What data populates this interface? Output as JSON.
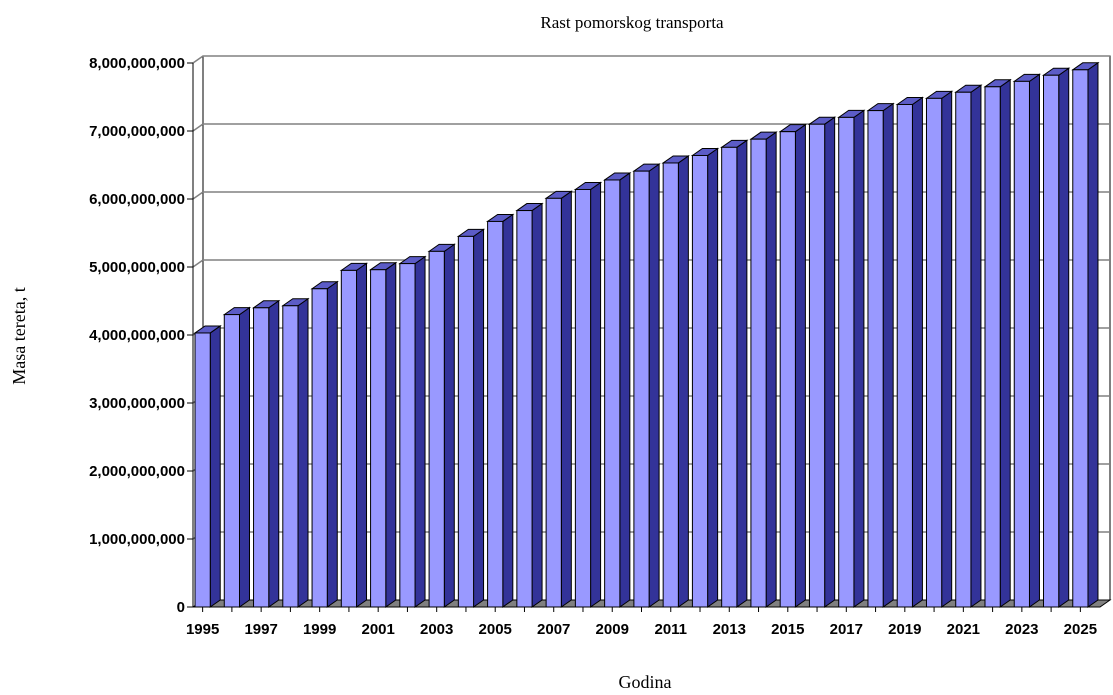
{
  "chart_data": {
    "type": "bar",
    "title": "Rast pomorskog transporta",
    "xlabel": "Godina",
    "ylabel": "Masa tereta, t",
    "ylim": [
      0,
      8000000000
    ],
    "yticks": [
      "0",
      "1,000,000,000",
      "2,000,000,000",
      "3,000,000,000",
      "4,000,000,000",
      "5,000,000,000",
      "6,000,000,000",
      "7,000,000,000",
      "8,000,000,000"
    ],
    "ytick_values": [
      0,
      1000000000,
      2000000000,
      3000000000,
      4000000000,
      5000000000,
      6000000000,
      7000000000,
      8000000000
    ],
    "xtick_labels": [
      "1995",
      "1997",
      "1999",
      "2001",
      "2003",
      "2005",
      "2007",
      "2009",
      "2011",
      "2013",
      "2015",
      "2017",
      "2019",
      "2021",
      "2023",
      "2025"
    ],
    "categories": [
      "1995",
      "1996",
      "1997",
      "1998",
      "1999",
      "2000",
      "2001",
      "2002",
      "2003",
      "2004",
      "2005",
      "2006",
      "2007",
      "2008",
      "2009",
      "2010",
      "2011",
      "2012",
      "2013",
      "2014",
      "2015",
      "2016",
      "2017",
      "2018",
      "2019",
      "2020",
      "2021",
      "2022",
      "2023",
      "2024",
      "2025"
    ],
    "values": [
      4030000000,
      4300000000,
      4400000000,
      4430000000,
      4680000000,
      4950000000,
      4960000000,
      5050000000,
      5230000000,
      5450000000,
      5670000000,
      5830000000,
      6010000000,
      6140000000,
      6280000000,
      6410000000,
      6530000000,
      6640000000,
      6760000000,
      6880000000,
      6990000000,
      7100000000,
      7200000000,
      7300000000,
      7390000000,
      7480000000,
      7570000000,
      7650000000,
      7730000000,
      7820000000,
      7900000000
    ],
    "grid": true,
    "bar_color": "#9999ff",
    "bar_edge_color": "#000080"
  }
}
